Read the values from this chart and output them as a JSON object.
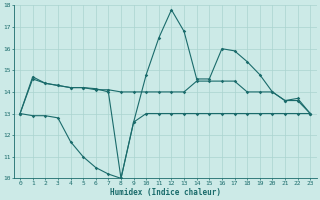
{
  "xlabel": "Humidex (Indice chaleur)",
  "xlim": [
    -0.5,
    23.5
  ],
  "ylim": [
    10,
    18
  ],
  "yticks": [
    10,
    11,
    12,
    13,
    14,
    15,
    16,
    17,
    18
  ],
  "xticks": [
    0,
    1,
    2,
    3,
    4,
    5,
    6,
    7,
    8,
    9,
    10,
    11,
    12,
    13,
    14,
    15,
    16,
    17,
    18,
    19,
    20,
    21,
    22,
    23
  ],
  "bg_color": "#cceae7",
  "grid_color": "#aad4d0",
  "line_color": "#1a6b6b",
  "line1_x": [
    0,
    1,
    2,
    3,
    4,
    5,
    6,
    7,
    8,
    9,
    10,
    11,
    12,
    13,
    14,
    15,
    16,
    17,
    18,
    19,
    20,
    21,
    22,
    23
  ],
  "line1_y": [
    13.0,
    14.7,
    14.4,
    14.3,
    14.2,
    14.2,
    14.15,
    14.0,
    10.0,
    12.6,
    14.8,
    16.5,
    17.8,
    16.8,
    14.6,
    14.6,
    16.0,
    15.9,
    15.4,
    14.8,
    14.0,
    13.6,
    13.7,
    13.0
  ],
  "line2_x": [
    0,
    1,
    2,
    3,
    4,
    5,
    6,
    7,
    8,
    9,
    10,
    11,
    12,
    13,
    14,
    15,
    16,
    17,
    18,
    19,
    20,
    21,
    22,
    23
  ],
  "line2_y": [
    13.0,
    14.6,
    14.4,
    14.3,
    14.2,
    14.2,
    14.1,
    14.1,
    14.0,
    14.0,
    14.0,
    14.0,
    14.0,
    14.0,
    14.5,
    14.5,
    14.5,
    14.5,
    14.0,
    14.0,
    14.0,
    13.6,
    13.6,
    13.0
  ],
  "line3_x": [
    0,
    1,
    2,
    3,
    4,
    5,
    6,
    7,
    8,
    9,
    10,
    11,
    12,
    13,
    14,
    15,
    16,
    17,
    18,
    19,
    20,
    21,
    22,
    23
  ],
  "line3_y": [
    13.0,
    12.9,
    12.9,
    12.8,
    11.7,
    11.0,
    10.5,
    10.2,
    10.0,
    12.6,
    13.0,
    13.0,
    13.0,
    13.0,
    13.0,
    13.0,
    13.0,
    13.0,
    13.0,
    13.0,
    13.0,
    13.0,
    13.0,
    13.0
  ]
}
